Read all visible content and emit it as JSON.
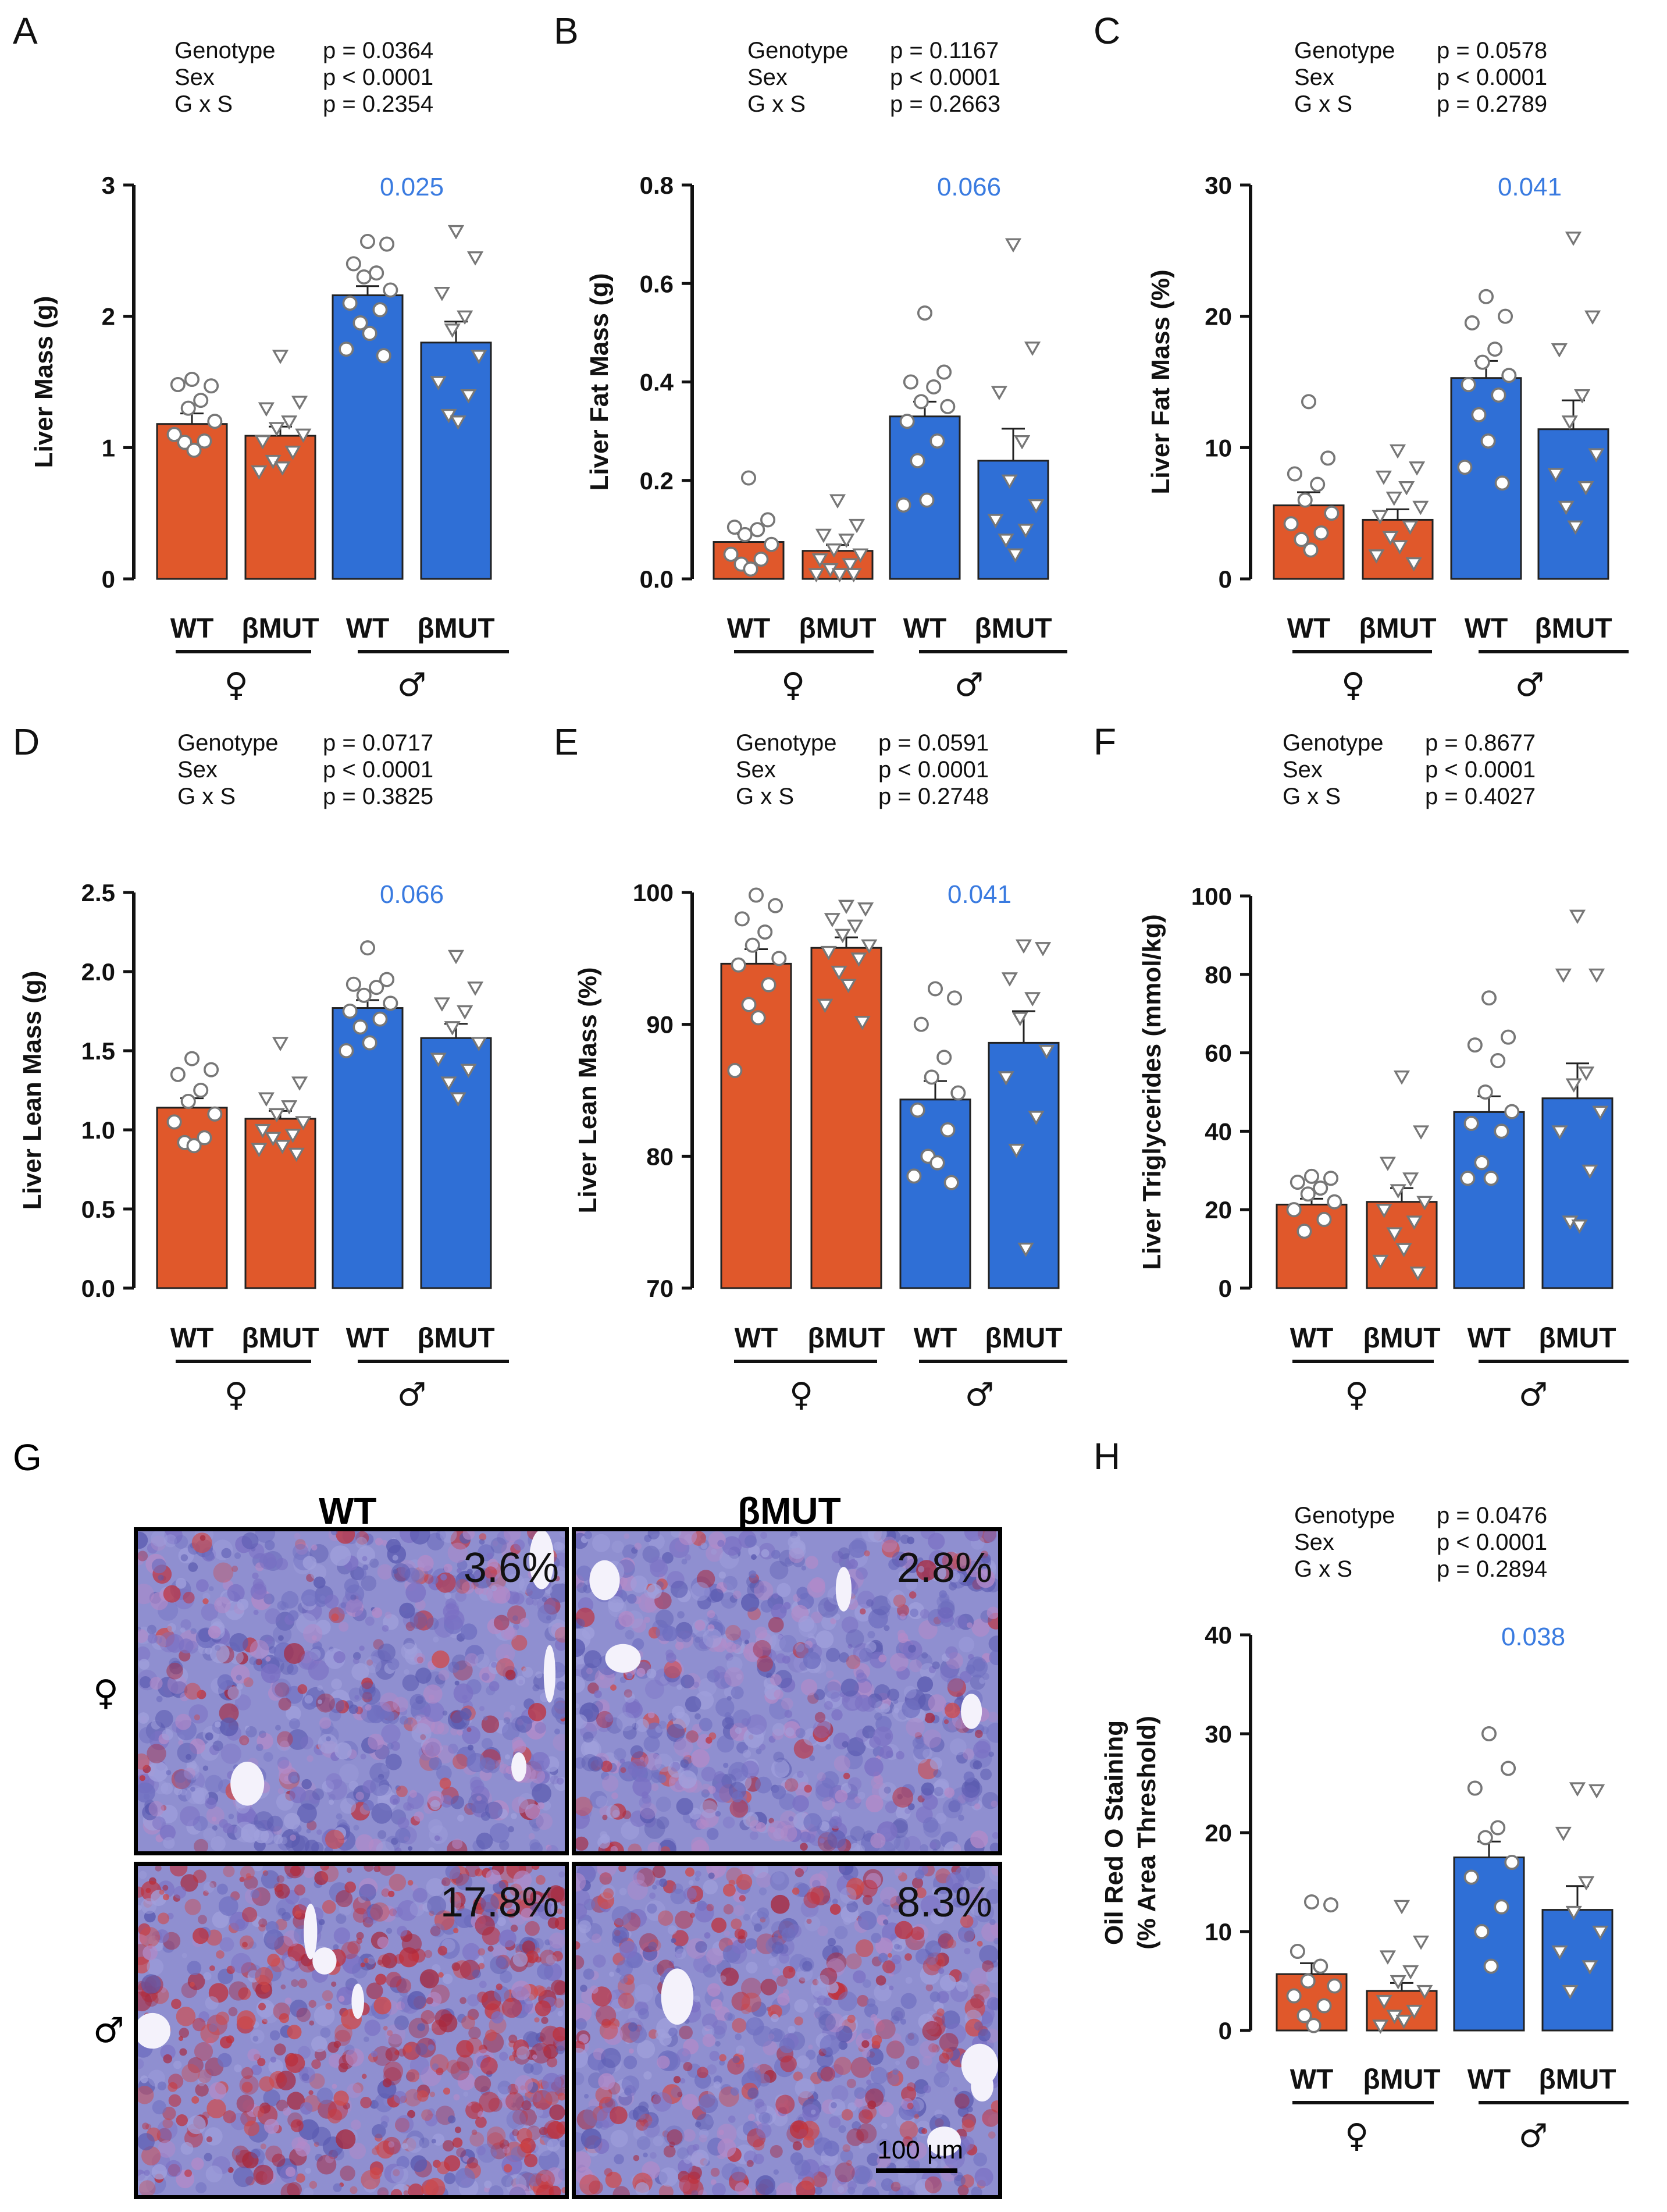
{
  "colors": {
    "female": "#e0582b",
    "male": "#2f6fd6",
    "sig": "#3a7be0",
    "axis": "#111111"
  },
  "shared": {
    "groups": [
      "WT",
      "βMUT",
      "WT",
      "βMUT"
    ],
    "female_symbol": "♀",
    "male_symbol": "♂",
    "stats_rows": [
      "Genotype",
      "Sex",
      "G x S"
    ]
  },
  "chart_data": [
    {
      "id": "A",
      "letter": "A",
      "type": "bar",
      "ylabel": "Liver Mass (g)",
      "ylim": [
        0,
        3
      ],
      "yticks": [
        "0",
        "1",
        "2",
        "3"
      ],
      "categories": [
        "WT",
        "βMUT",
        "WT",
        "βMUT"
      ],
      "values": [
        1.18,
        1.09,
        2.16,
        1.8
      ],
      "sem": [
        0.08,
        0.07,
        0.07,
        0.16
      ],
      "points": [
        [
          1.52,
          1.47,
          1.48,
          1.36,
          1.3,
          1.2,
          1.1,
          1.05,
          1.04,
          0.98
        ],
        [
          1.7,
          1.35,
          1.3,
          1.2,
          1.15,
          1.1,
          1.05,
          0.97,
          0.9,
          0.85,
          0.82
        ],
        [
          2.57,
          2.55,
          2.4,
          2.33,
          2.3,
          2.2,
          2.1,
          2.05,
          1.95,
          1.87,
          1.75,
          1.7
        ],
        [
          2.65,
          2.45,
          2.18,
          2.0,
          1.9,
          1.7,
          1.5,
          1.4,
          1.25,
          1.2
        ]
      ],
      "stats": [
        "p = 0.0364",
        "p < 0.0001",
        "p = 0.2354"
      ],
      "sig_label": "0.025"
    },
    {
      "id": "B",
      "letter": "B",
      "type": "bar",
      "ylabel": "Liver Fat Mass (g)",
      "ylim": [
        0,
        0.8
      ],
      "yticks": [
        "0.0",
        "0.2",
        "0.4",
        "0.6",
        "0.8"
      ],
      "categories": [
        "WT",
        "βMUT",
        "WT",
        "βMUT"
      ],
      "values": [
        0.075,
        0.057,
        0.33,
        0.24
      ],
      "sem": [
        0.016,
        0.012,
        0.03,
        0.065
      ],
      "points": [
        [
          0.205,
          0.12,
          0.105,
          0.1,
          0.09,
          0.07,
          0.05,
          0.04,
          0.03,
          0.02
        ],
        [
          0.16,
          0.11,
          0.09,
          0.08,
          0.06,
          0.05,
          0.04,
          0.03,
          0.02,
          0.01,
          0.01,
          0.01
        ],
        [
          0.54,
          0.42,
          0.4,
          0.39,
          0.36,
          0.35,
          0.32,
          0.28,
          0.24,
          0.16,
          0.15
        ],
        [
          0.68,
          0.47,
          0.38,
          0.28,
          0.2,
          0.15,
          0.12,
          0.1,
          0.08,
          0.05
        ]
      ],
      "stats": [
        "p = 0.1167",
        "p < 0.0001",
        "p = 0.2663"
      ],
      "sig_label": "0.066"
    },
    {
      "id": "C",
      "letter": "C",
      "type": "bar",
      "ylabel": "Liver Fat Mass (%)",
      "ylim": [
        0,
        30
      ],
      "yticks": [
        "0",
        "10",
        "20",
        "30"
      ],
      "categories": [
        "WT",
        "βMUT",
        "WT",
        "βMUT"
      ],
      "values": [
        5.6,
        4.5,
        15.3,
        11.4
      ],
      "sem": [
        1.0,
        0.8,
        1.3,
        2.2
      ],
      "points": [
        [
          13.5,
          9.2,
          8.0,
          7.2,
          6.0,
          5.0,
          4.2,
          3.5,
          3.0,
          2.2
        ],
        [
          9.8,
          8.5,
          7.8,
          7.0,
          6.2,
          5.5,
          4.8,
          4.0,
          3.2,
          2.5,
          1.8,
          1.2
        ],
        [
          21.5,
          20.0,
          19.5,
          17.5,
          16.5,
          15.5,
          14.8,
          14.0,
          12.5,
          10.5,
          8.5,
          7.3
        ],
        [
          26.0,
          20.0,
          17.5,
          14.0,
          12.0,
          9.5,
          8.0,
          7.0,
          5.5,
          4.0
        ]
      ],
      "stats": [
        "p = 0.0578",
        "p < 0.0001",
        "p = 0.2789"
      ],
      "sig_label": "0.041"
    },
    {
      "id": "D",
      "letter": "D",
      "type": "bar",
      "ylabel": "Liver Lean Mass (g)",
      "ylim": [
        0,
        2.5
      ],
      "yticks": [
        "0.0",
        "0.5",
        "1.0",
        "1.5",
        "2.0",
        "2.5"
      ],
      "categories": [
        "WT",
        "βMUT",
        "WT",
        "βMUT"
      ],
      "values": [
        1.14,
        1.07,
        1.77,
        1.58
      ],
      "sem": [
        0.06,
        0.05,
        0.05,
        0.09
      ],
      "points": [
        [
          1.45,
          1.38,
          1.35,
          1.25,
          1.18,
          1.1,
          1.05,
          0.95,
          0.92,
          0.9
        ],
        [
          1.55,
          1.3,
          1.2,
          1.15,
          1.1,
          1.05,
          1.0,
          0.97,
          0.95,
          0.9,
          0.88,
          0.85
        ],
        [
          2.15,
          1.95,
          1.92,
          1.9,
          1.85,
          1.8,
          1.75,
          1.7,
          1.65,
          1.55,
          1.5
        ],
        [
          2.1,
          1.9,
          1.8,
          1.75,
          1.65,
          1.55,
          1.45,
          1.38,
          1.3,
          1.2
        ]
      ],
      "stats": [
        "p = 0.0717",
        "p < 0.0001",
        "p = 0.3825"
      ],
      "sig_label": "0.066"
    },
    {
      "id": "E",
      "letter": "E",
      "type": "bar",
      "ylabel": "Liver Lean Mass (%)",
      "ylim": [
        70,
        100
      ],
      "yticks": [
        "70",
        "80",
        "90",
        "100"
      ],
      "categories": [
        "WT",
        "βMUT",
        "WT",
        "βMUT"
      ],
      "values": [
        94.6,
        95.8,
        84.3,
        88.6
      ],
      "sem": [
        1.1,
        0.8,
        1.4,
        2.4
      ],
      "points": [
        [
          99.8,
          99.0,
          98.0,
          97.0,
          96.0,
          95.0,
          94.5,
          93.0,
          91.5,
          90.5,
          86.5
        ],
        [
          99.0,
          98.8,
          98.0,
          97.5,
          96.8,
          96.0,
          95.5,
          95.0,
          94.0,
          93.0,
          91.5,
          90.2
        ],
        [
          92.7,
          92.0,
          90.0,
          87.5,
          86.0,
          84.8,
          83.5,
          82.0,
          80.0,
          79.5,
          78.5,
          78.0
        ],
        [
          96.0,
          95.8,
          93.5,
          92.0,
          90.5,
          88.0,
          86.0,
          83.0,
          80.5,
          73.0
        ]
      ],
      "stats": [
        "p = 0.0591",
        "p < 0.0001",
        "p = 0.2748"
      ],
      "sig_label": "0.041"
    },
    {
      "id": "F",
      "letter": "F",
      "type": "bar",
      "ylabel": "Liver Triglycerides (mmol/kg)",
      "ylim": [
        0,
        100
      ],
      "yticks": [
        "0",
        "20",
        "40",
        "60",
        "80",
        "100"
      ],
      "categories": [
        "WT",
        "βMUT",
        "WT",
        "βMUT"
      ],
      "values": [
        21.3,
        22.0,
        44.9,
        48.4
      ],
      "sem": [
        1.5,
        3.5,
        4.0,
        8.9
      ],
      "points": [
        [
          28.5,
          28.0,
          27.0,
          25.5,
          24.0,
          22.0,
          20.0,
          17.5,
          14.5
        ],
        [
          54.0,
          40.0,
          32.0,
          28.0,
          25.0,
          22.0,
          20.0,
          17.0,
          14.0,
          10.0,
          7.0,
          4.0
        ],
        [
          74.0,
          64.0,
          62.0,
          58.0,
          50.0,
          45.0,
          42.0,
          40.0,
          32.0,
          28.0,
          28.0
        ],
        [
          95.0,
          80.0,
          80.0,
          55.0,
          52.0,
          45.0,
          40.0,
          30.0,
          17.0,
          16.0
        ]
      ],
      "stats": [
        "p = 0.8677",
        "p < 0.0001",
        "p = 0.4027"
      ],
      "sig_label": ""
    },
    {
      "id": "H",
      "letter": "H",
      "type": "bar",
      "ylabel": "Oil Red O Staining",
      "ylabel2": "(% Area Threshold)",
      "ylim": [
        0,
        40
      ],
      "yticks": [
        "0",
        "10",
        "20",
        "30",
        "40"
      ],
      "categories": [
        "WT",
        "βMUT",
        "WT",
        "βMUT"
      ],
      "values": [
        5.7,
        4.0,
        17.5,
        12.2
      ],
      "sem": [
        1.1,
        0.8,
        1.6,
        2.4
      ],
      "points": [
        [
          13.0,
          12.7,
          8.0,
          6.5,
          5.0,
          4.5,
          3.5,
          2.5,
          1.5,
          0.5
        ],
        [
          12.6,
          9.0,
          7.5,
          6.0,
          5.0,
          4.0,
          3.0,
          2.0,
          1.5,
          1.0,
          0.5
        ],
        [
          30.0,
          26.5,
          24.5,
          20.5,
          19.5,
          17.0,
          15.5,
          12.5,
          10.0,
          6.5
        ],
        [
          24.5,
          24.3,
          20.0,
          15.0,
          12.0,
          10.0,
          8.0,
          6.5,
          4.0
        ]
      ],
      "stats": [
        "p = 0.0476",
        "p < 0.0001",
        "p = 0.2894"
      ],
      "sig_label": "0.038"
    }
  ],
  "histology": {
    "letter": "G",
    "columns": [
      "WT",
      "βMUT"
    ],
    "rows": [
      "♀",
      "♂"
    ],
    "percentages": [
      "3.6%",
      "2.8%",
      "17.8%",
      "8.3%"
    ],
    "scale_bar": "100 µm"
  }
}
